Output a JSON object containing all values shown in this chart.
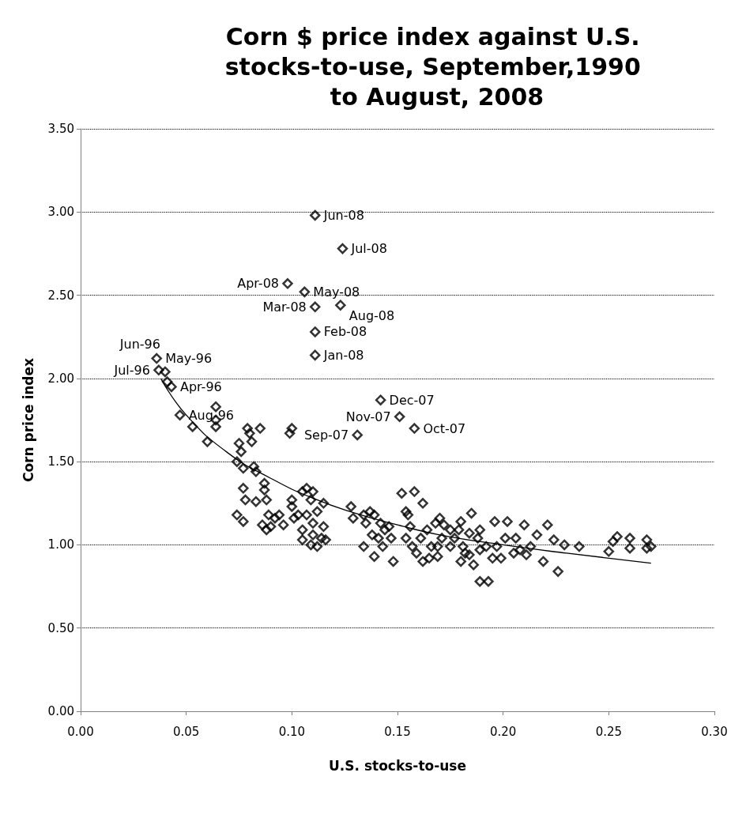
{
  "chart_data": {
    "type": "scatter",
    "title": "Corn $ price index against U.S. stocks-to-use, September,1990 to August, 2008",
    "xlabel": "U.S. stocks-to-use",
    "ylabel": "Corn price index",
    "series": [
      {
        "color": "#000000",
        "marker": "diamond",
        "x": [
          0.111,
          0.124,
          0.098,
          0.106,
          0.111,
          0.123,
          0.111,
          0.111,
          0.142,
          0.151,
          0.158,
          0.131,
          0.036,
          0.037,
          0.04,
          0.043,
          0.047,
          0.041,
          0.053,
          0.06,
          0.064,
          0.064,
          0.064,
          0.08,
          0.085,
          0.079,
          0.081,
          0.075,
          0.076,
          0.074,
          0.077,
          0.082,
          0.083,
          0.087,
          0.087,
          0.077,
          0.078,
          0.083,
          0.088,
          0.074,
          0.077,
          0.086,
          0.088,
          0.09,
          0.092,
          0.094,
          0.096,
          0.089,
          0.1,
          0.1,
          0.103,
          0.105,
          0.107,
          0.109,
          0.11,
          0.105,
          0.105,
          0.109,
          0.11,
          0.112,
          0.114,
          0.115,
          0.116,
          0.099,
          0.1,
          0.107,
          0.101,
          0.11,
          0.115,
          0.112,
          0.128,
          0.129,
          0.134,
          0.135,
          0.137,
          0.138,
          0.139,
          0.141,
          0.142,
          0.144,
          0.146,
          0.147,
          0.139,
          0.148,
          0.143,
          0.134,
          0.152,
          0.158,
          0.162,
          0.154,
          0.156,
          0.154,
          0.157,
          0.159,
          0.161,
          0.164,
          0.166,
          0.165,
          0.169,
          0.162,
          0.168,
          0.17,
          0.172,
          0.175,
          0.177,
          0.179,
          0.171,
          0.169,
          0.155,
          0.184,
          0.185,
          0.181,
          0.18,
          0.182,
          0.188,
          0.189,
          0.192,
          0.189,
          0.193,
          0.186,
          0.195,
          0.197,
          0.196,
          0.202,
          0.201,
          0.199,
          0.205,
          0.206,
          0.18,
          0.184,
          0.175,
          0.189,
          0.21,
          0.216,
          0.221,
          0.224,
          0.229,
          0.226,
          0.219,
          0.213,
          0.208,
          0.211,
          0.236,
          0.252,
          0.25,
          0.254,
          0.26,
          0.26,
          0.268,
          0.268,
          0.27
        ],
        "values": [
          2.98,
          2.78,
          2.57,
          2.52,
          2.43,
          2.44,
          2.28,
          2.14,
          1.87,
          1.77,
          1.7,
          1.66,
          2.12,
          2.05,
          2.04,
          1.95,
          1.78,
          1.98,
          1.71,
          1.62,
          1.83,
          1.75,
          1.71,
          1.67,
          1.7,
          1.7,
          1.62,
          1.61,
          1.56,
          1.5,
          1.46,
          1.47,
          1.44,
          1.37,
          1.33,
          1.34,
          1.27,
          1.26,
          1.27,
          1.18,
          1.14,
          1.12,
          1.09,
          1.11,
          1.16,
          1.18,
          1.12,
          1.18,
          1.27,
          1.23,
          1.18,
          1.32,
          1.34,
          1.27,
          1.32,
          1.09,
          1.03,
          1.0,
          1.13,
          1.2,
          1.04,
          1.11,
          1.03,
          1.67,
          1.7,
          1.18,
          1.16,
          1.06,
          1.25,
          0.99,
          1.23,
          1.16,
          1.18,
          1.13,
          1.2,
          1.06,
          1.18,
          1.04,
          1.13,
          1.09,
          1.11,
          1.04,
          0.93,
          0.9,
          0.99,
          0.99,
          1.31,
          1.32,
          1.25,
          1.2,
          1.11,
          1.04,
          0.99,
          0.95,
          1.04,
          1.09,
          0.99,
          0.92,
          0.93,
          0.9,
          1.13,
          1.16,
          1.12,
          1.09,
          1.04,
          1.09,
          1.04,
          0.99,
          1.18,
          1.07,
          1.19,
          0.99,
          1.14,
          0.95,
          1.04,
          1.09,
          0.99,
          0.78,
          0.78,
          0.88,
          0.92,
          0.99,
          1.14,
          1.14,
          1.04,
          0.92,
          0.95,
          1.04,
          0.9,
          0.94,
          0.99,
          0.97,
          1.12,
          1.06,
          1.12,
          1.03,
          1.0,
          0.84,
          0.9,
          0.99,
          0.97,
          0.94,
          0.99,
          1.02,
          0.96,
          1.05,
          1.04,
          0.98,
          1.03,
          0.98,
          0.99
        ]
      },
      {
        "type": "line",
        "color": "#000000",
        "marker": "none",
        "x": [
          0.038,
          0.05,
          0.07,
          0.09,
          0.11,
          0.13,
          0.15,
          0.17,
          0.2,
          0.23,
          0.27
        ],
        "values": [
          2.0,
          1.78,
          1.55,
          1.4,
          1.28,
          1.19,
          1.12,
          1.06,
          1.0,
          0.95,
          0.89
        ]
      }
    ],
    "annotations": [
      {
        "text": "Jun-08",
        "x": 0.111,
        "y": 2.98
      },
      {
        "text": "Jul-08",
        "x": 0.124,
        "y": 2.78
      },
      {
        "text": "Apr-08",
        "x": 0.098,
        "y": 2.57
      },
      {
        "text": "May-08",
        "x": 0.106,
        "y": 2.52
      },
      {
        "text": "Mar-08",
        "x": 0.111,
        "y": 2.43
      },
      {
        "text": "Aug-08",
        "x": 0.123,
        "y": 2.44
      },
      {
        "text": "Feb-08",
        "x": 0.111,
        "y": 2.28
      },
      {
        "text": "Jan-08",
        "x": 0.111,
        "y": 2.14
      },
      {
        "text": "Dec-07",
        "x": 0.142,
        "y": 1.87
      },
      {
        "text": "Nov-07",
        "x": 0.151,
        "y": 1.77
      },
      {
        "text": "Oct-07",
        "x": 0.158,
        "y": 1.7
      },
      {
        "text": "Sep-07",
        "x": 0.131,
        "y": 1.66
      },
      {
        "text": "May-96",
        "x": 0.036,
        "y": 2.12
      },
      {
        "text": "Jul-96",
        "x": 0.037,
        "y": 2.05
      },
      {
        "text": "Jun-96",
        "x": 0.04,
        "y": 2.04
      },
      {
        "text": "Apr-96",
        "x": 0.043,
        "y": 1.95
      },
      {
        "text": "Aug-96",
        "x": 0.047,
        "y": 1.78
      }
    ],
    "xlim": [
      0,
      0.3
    ],
    "xticks": [
      {
        "value": 0,
        "label": "0.00"
      },
      {
        "value": 0.05,
        "label": "0.05"
      },
      {
        "value": 0.1,
        "label": "0.10"
      },
      {
        "value": 0.15,
        "label": "0.15"
      },
      {
        "value": 0.2,
        "label": "0.20"
      },
      {
        "value": 0.25,
        "label": "0.25"
      },
      {
        "value": 0.3,
        "label": "0.30"
      }
    ],
    "ylim": [
      0,
      3.5
    ],
    "yticks": [
      {
        "value": 0,
        "label": "0.00"
      },
      {
        "value": 0.5,
        "label": "0.50"
      },
      {
        "value": 1,
        "label": "1.00"
      },
      {
        "value": 1.5,
        "label": "1.50"
      },
      {
        "value": 2,
        "label": "2.00"
      },
      {
        "value": 2.5,
        "label": "2.50"
      },
      {
        "value": 3,
        "label": "3.00"
      },
      {
        "value": 3.5,
        "label": "3.50"
      }
    ],
    "grid": "y"
  }
}
